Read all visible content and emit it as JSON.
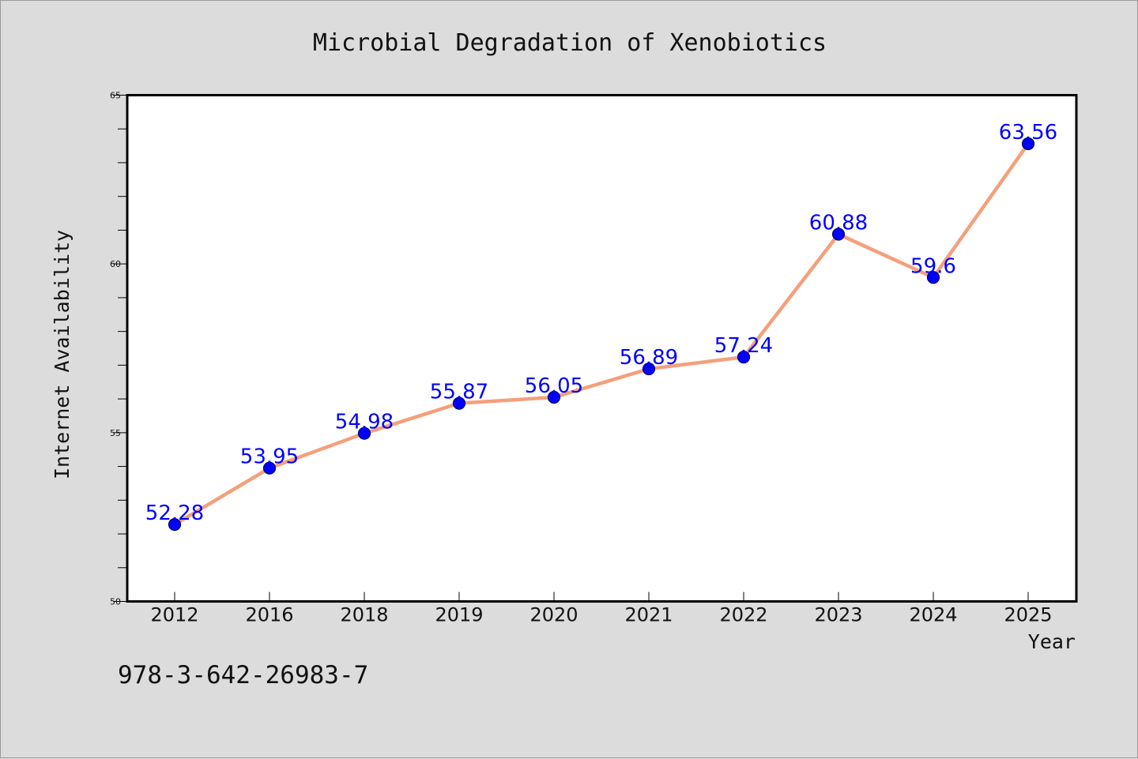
{
  "chart_data": {
    "type": "line",
    "title": "Microbial Degradation of Xenobiotics",
    "xlabel": "Year",
    "ylabel": "Internet Availability",
    "categories": [
      "2012",
      "2016",
      "2018",
      "2019",
      "2020",
      "2021",
      "2022",
      "2023",
      "2024",
      "2025"
    ],
    "series": [
      {
        "values": [
          52.28,
          53.95,
          54.98,
          55.87,
          56.05,
          56.89,
          57.24,
          60.88,
          59.6,
          63.56
        ],
        "labels": [
          "52.28",
          "53.95",
          "54.98",
          "55.87",
          "56.05",
          "56.89",
          "57.24",
          "60.88",
          "59.6",
          "63.56"
        ],
        "line_color": "#f4a07a",
        "marker_color": "#0000ff"
      }
    ],
    "ylim": [
      50,
      65
    ],
    "yticks": [
      "50",
      "55",
      "60",
      "65"
    ],
    "y_minor_step": 1,
    "grid": false,
    "legend": "none"
  },
  "footer": {
    "isbn": "978-3-642-26983-7"
  },
  "colors": {
    "background": "#dcdcdc",
    "plot_background": "#ffffff",
    "axis": "#000000"
  }
}
